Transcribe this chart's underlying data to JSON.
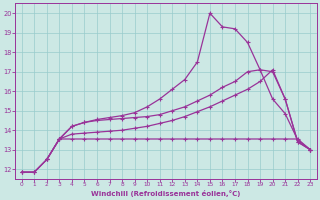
{
  "xlabel": "Windchill (Refroidissement éolien,°C)",
  "xlim": [
    -0.5,
    23.5
  ],
  "ylim": [
    11.5,
    20.5
  ],
  "xticks": [
    0,
    1,
    2,
    3,
    4,
    5,
    6,
    7,
    8,
    9,
    10,
    11,
    12,
    13,
    14,
    15,
    16,
    17,
    18,
    19,
    20,
    21,
    22,
    23
  ],
  "yticks": [
    12,
    13,
    14,
    15,
    16,
    17,
    18,
    19,
    20
  ],
  "bg_color": "#cce8e4",
  "line_color": "#993399",
  "grid_color": "#99cccc",
  "line1_x": [
    0,
    1,
    2,
    3,
    4,
    5,
    6,
    7,
    8,
    9,
    10,
    11,
    12,
    13,
    14,
    15,
    16,
    17,
    18,
    19,
    20,
    21,
    22,
    23
  ],
  "line1_y": [
    11.85,
    11.85,
    12.5,
    13.55,
    13.55,
    13.55,
    13.55,
    13.55,
    13.55,
    13.55,
    13.55,
    13.55,
    13.55,
    13.55,
    13.55,
    13.55,
    13.55,
    13.55,
    13.55,
    13.55,
    13.55,
    13.55,
    13.55,
    13.0
  ],
  "line2_x": [
    2,
    3,
    4,
    5,
    6,
    7,
    8,
    9,
    10,
    11,
    12,
    13,
    14,
    15,
    16,
    17,
    18,
    19,
    20,
    21,
    22,
    23
  ],
  "line2_y": [
    12.5,
    13.55,
    13.8,
    13.85,
    13.9,
    13.95,
    14.0,
    14.1,
    14.2,
    14.35,
    14.5,
    14.7,
    14.95,
    15.2,
    15.5,
    15.8,
    16.1,
    16.5,
    17.1,
    15.6,
    13.4,
    13.0
  ],
  "line3_x": [
    0,
    1,
    2,
    3,
    4,
    5,
    6,
    7,
    8,
    9,
    10,
    11,
    12,
    13,
    14,
    15,
    16,
    17,
    18,
    19,
    20,
    21,
    22,
    23
  ],
  "line3_y": [
    11.85,
    11.85,
    12.5,
    13.55,
    14.2,
    14.4,
    14.5,
    14.55,
    14.6,
    14.65,
    14.7,
    14.8,
    15.0,
    15.2,
    15.5,
    15.8,
    16.2,
    16.5,
    17.0,
    17.1,
    15.6,
    14.85,
    13.5,
    13.0
  ],
  "line4_x": [
    0,
    1,
    2,
    3,
    4,
    5,
    6,
    7,
    8,
    9,
    10,
    11,
    12,
    13,
    14,
    15,
    16,
    17,
    18,
    19,
    20,
    21,
    22,
    23
  ],
  "line4_y": [
    11.85,
    11.85,
    12.5,
    13.55,
    14.2,
    14.4,
    14.55,
    14.65,
    14.75,
    14.9,
    15.2,
    15.6,
    16.1,
    16.6,
    17.5,
    20.0,
    19.3,
    19.2,
    18.5,
    17.1,
    17.0,
    15.6,
    13.4,
    13.0
  ]
}
